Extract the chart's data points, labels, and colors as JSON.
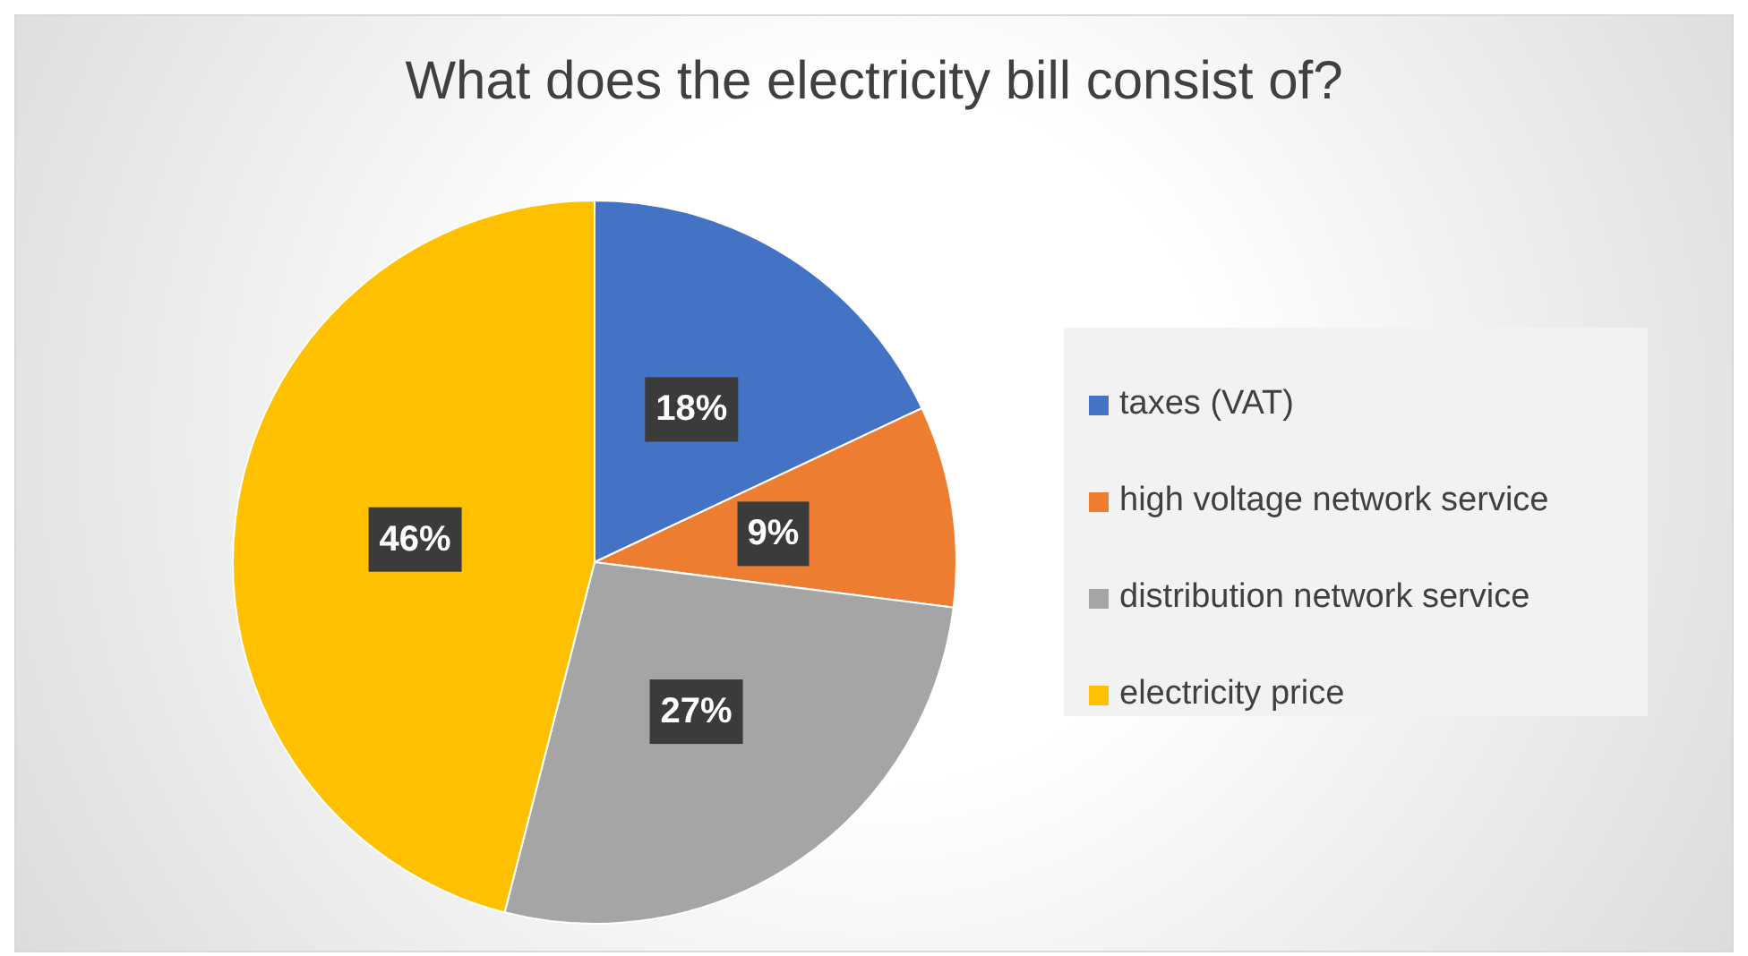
{
  "chart_data": {
    "type": "pie",
    "title": "What does the electricity bill consist of?",
    "categories": [
      "taxes (VAT)",
      "high voltage network service",
      "distribution network service",
      "electricity price"
    ],
    "values": [
      18,
      9,
      27,
      46
    ],
    "value_labels": [
      "18%",
      "9%",
      "27%",
      "46%"
    ],
    "colors": [
      "#4472c4",
      "#ed7d31",
      "#a5a5a5",
      "#ffc000"
    ],
    "legend": "right"
  }
}
